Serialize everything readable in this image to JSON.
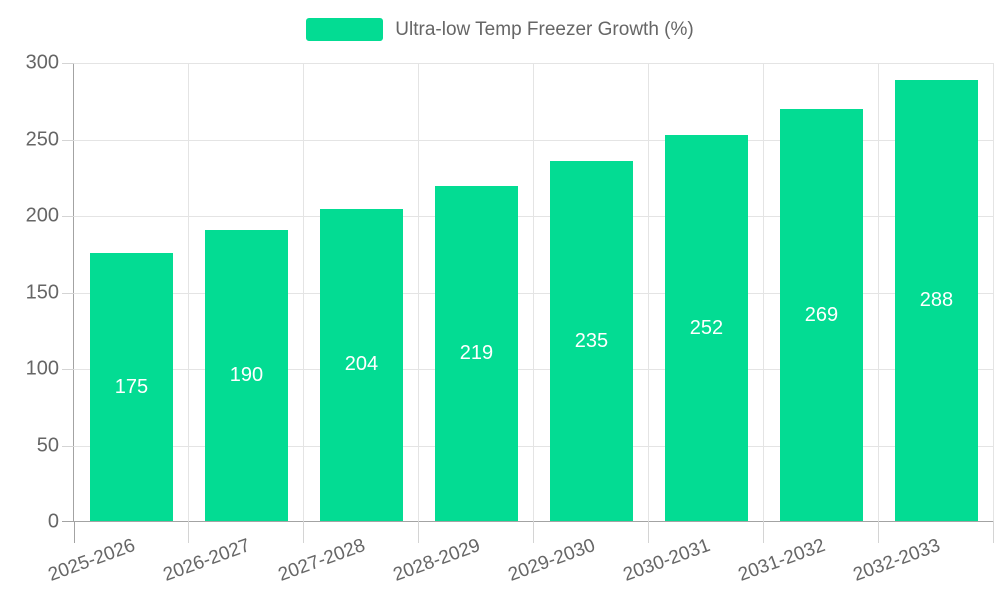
{
  "page": {
    "background": "#ffffff"
  },
  "legend": {
    "label": "Ultra-low Temp Freezer Growth (%)"
  },
  "colors": {
    "bar": "#03dc93",
    "axis_line": "#a3a3a3",
    "grid_line": "#e4e4e4",
    "tick_line": "#d4d4d4",
    "label_text": "#666666",
    "value_label_text": "#ffffff",
    "background": "#ffffff"
  },
  "chart_data": {
    "type": "bar",
    "title": "",
    "categories": [
      "2025-2026",
      "2026-2027",
      "2027-2028",
      "2028-2029",
      "2029-2030",
      "2030-2031",
      "2031-2032",
      "2032-2033"
    ],
    "series": [
      {
        "name": "Ultra-low Temp Freezer Growth (%)",
        "values": [
          175,
          190,
          204,
          219,
          235,
          252,
          269,
          288
        ],
        "color": "#03dc93"
      }
    ],
    "xlabel": "",
    "ylabel": "",
    "ylim": [
      0,
      300
    ],
    "yticks": [
      0,
      50,
      100,
      150,
      200,
      250,
      300
    ],
    "grid": true,
    "legend_position": "top-center",
    "value_labels_position": "inside-center",
    "x_tick_rotation_deg": -20
  }
}
